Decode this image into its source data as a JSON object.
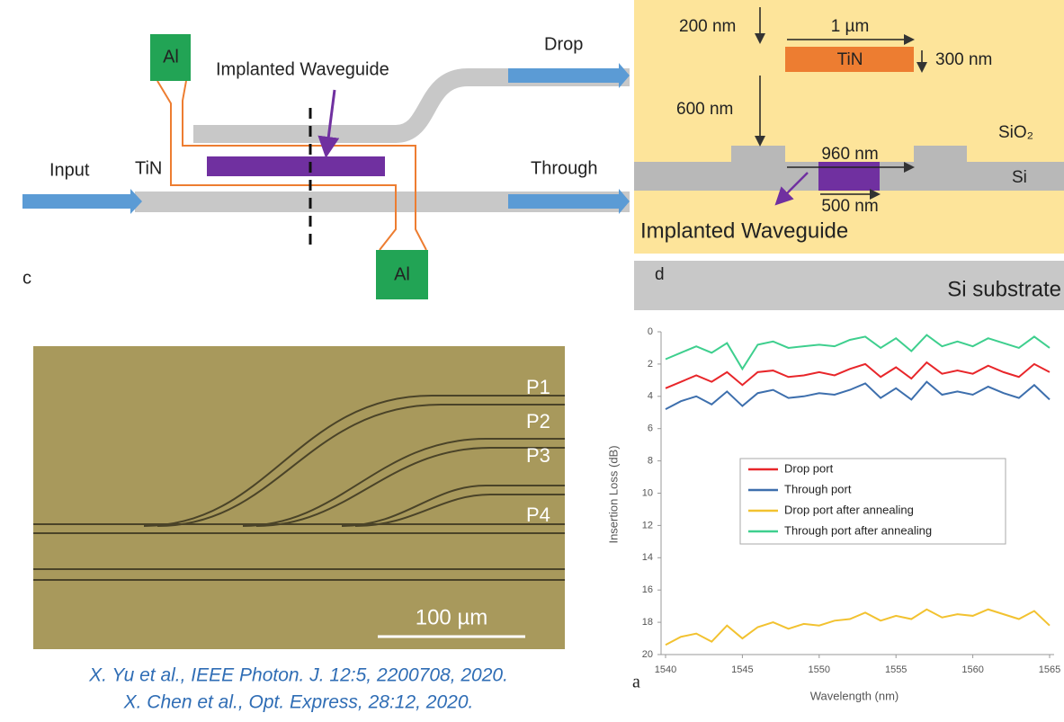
{
  "panel_c": {
    "label": "c",
    "al_top": "Al",
    "al_bottom": "Al",
    "implanted": "Implanted Waveguide",
    "drop": "Drop",
    "input": "Input",
    "tin": "TiN",
    "through": "Through"
  },
  "panel_d": {
    "label": "d",
    "dim_top": "200 nm",
    "dim_tin_width": "1 µm",
    "dim_tin_height": "300 nm",
    "dim_gap": "600 nm",
    "dim_rib": "960 nm",
    "dim_implant": "500 nm",
    "tin": "TiN",
    "sio2": "SiO₂",
    "si": "Si",
    "implanted": "Implanted Waveguide",
    "substrate": "Si substrate"
  },
  "micrograph": {
    "ports": [
      "P1",
      "P2",
      "P3",
      "P4"
    ],
    "scale_bar": "100 µm"
  },
  "citations": [
    "X. Yu et al., IEEE Photon. J. 12:5, 2200708, 2020.",
    "X. Chen et al., Opt. Express, 28:12, 2020."
  ],
  "chart_data": {
    "type": "line",
    "panel_label": "a",
    "x_label": "Wavelength (nm)",
    "y_label": "Insertion Loss (dB)",
    "x": [
      1540,
      1541,
      1542,
      1543,
      1544,
      1545,
      1546,
      1547,
      1548,
      1549,
      1550,
      1551,
      1552,
      1553,
      1554,
      1555,
      1556,
      1557,
      1558,
      1559,
      1560,
      1561,
      1562,
      1563,
      1564,
      1565
    ],
    "series": [
      {
        "name": "Drop port",
        "color": "#e8262a",
        "values": [
          3.5,
          3.1,
          2.7,
          3.1,
          2.5,
          3.3,
          2.5,
          2.4,
          2.8,
          2.7,
          2.5,
          2.7,
          2.3,
          2.0,
          2.8,
          2.2,
          2.9,
          1.9,
          2.6,
          2.4,
          2.6,
          2.1,
          2.5,
          2.8,
          2.0,
          2.5
        ]
      },
      {
        "name": "Through port",
        "color": "#3d6fad",
        "values": [
          4.8,
          4.3,
          4.0,
          4.5,
          3.7,
          4.6,
          3.8,
          3.6,
          4.1,
          4.0,
          3.8,
          3.9,
          3.6,
          3.2,
          4.1,
          3.5,
          4.2,
          3.1,
          3.9,
          3.7,
          3.9,
          3.4,
          3.8,
          4.1,
          3.3,
          4.2
        ]
      },
      {
        "name": "Drop port after annealing",
        "color": "#f2c230",
        "values": [
          19.4,
          18.9,
          18.7,
          19.2,
          18.2,
          19.0,
          18.3,
          18.0,
          18.4,
          18.1,
          18.2,
          17.9,
          17.8,
          17.4,
          17.9,
          17.6,
          17.8,
          17.2,
          17.7,
          17.5,
          17.6,
          17.2,
          17.5,
          17.8,
          17.3,
          18.2
        ]
      },
      {
        "name": "Through port after annealing",
        "color": "#3ecf8e",
        "values": [
          1.7,
          1.3,
          0.9,
          1.3,
          0.7,
          2.3,
          0.8,
          0.6,
          1.0,
          0.9,
          0.8,
          0.9,
          0.5,
          0.3,
          1.0,
          0.4,
          1.2,
          0.2,
          0.9,
          0.6,
          0.9,
          0.4,
          0.7,
          1.0,
          0.3,
          1.0
        ]
      }
    ],
    "xlim": [
      1540,
      1565
    ],
    "xticks": [
      1540,
      1545,
      1550,
      1555,
      1560,
      1565
    ],
    "ylim": [
      20,
      0
    ],
    "yticks": [
      0,
      2,
      4,
      6,
      8,
      10,
      12,
      14,
      16,
      18,
      20
    ],
    "grid": false
  }
}
